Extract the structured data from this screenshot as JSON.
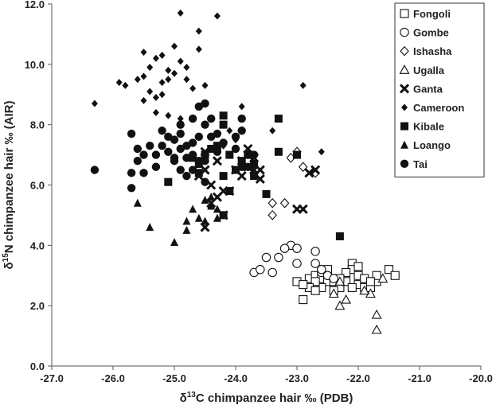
{
  "chart_data": {
    "type": "scatter",
    "xlabel_prefix": "δ",
    "xlabel_sup": "13",
    "xlabel_rest": "C chimpanzee hair ‰ (PDB)",
    "ylabel_prefix": "δ",
    "ylabel_sup": "15",
    "ylabel_rest": "N chimpanzee hair ‰ (AIR)",
    "xlim": [
      -27.0,
      -20.0
    ],
    "ylim": [
      0.0,
      12.0
    ],
    "x_ticks": [
      "-27.0",
      "-26.0",
      "-25.0",
      "-24.0",
      "-23.0",
      "-22.0",
      "-21.0",
      "-20.0"
    ],
    "y_ticks": [
      "0.0",
      "2.0",
      "4.0",
      "6.0",
      "8.0",
      "10.0",
      "12.0"
    ],
    "grid": false,
    "legend_position": "top-right",
    "series": [
      {
        "name": "Fongoli",
        "marker": "square-open",
        "points": [
          [
            -22.9,
            2.2
          ],
          [
            -23.0,
            2.8
          ],
          [
            -22.8,
            2.9
          ],
          [
            -22.7,
            3.0
          ],
          [
            -22.6,
            2.9
          ],
          [
            -22.5,
            3.2
          ],
          [
            -22.5,
            2.8
          ],
          [
            -22.4,
            2.8
          ],
          [
            -22.3,
            2.6
          ],
          [
            -22.2,
            2.8
          ],
          [
            -22.1,
            3.4
          ],
          [
            -22.1,
            3.2
          ],
          [
            -22.0,
            3.0
          ],
          [
            -22.0,
            2.7
          ],
          [
            -21.9,
            2.6
          ],
          [
            -21.8,
            2.6
          ],
          [
            -21.9,
            2.9
          ],
          [
            -21.7,
            2.8
          ],
          [
            -21.7,
            3.0
          ],
          [
            -21.5,
            3.2
          ],
          [
            -21.4,
            3.0
          ],
          [
            -22.2,
            3.1
          ],
          [
            -22.1,
            2.6
          ],
          [
            -22.3,
            2.9
          ],
          [
            -22.4,
            2.5
          ],
          [
            -22.6,
            2.6
          ],
          [
            -22.7,
            2.8
          ],
          [
            -22.8,
            2.6
          ],
          [
            -22.9,
            2.7
          ],
          [
            -22.7,
            2.5
          ],
          [
            -21.8,
            2.8
          ],
          [
            -22.0,
            3.3
          ]
        ]
      },
      {
        "name": "Gombe",
        "marker": "circle-open",
        "points": [
          [
            -23.7,
            3.1
          ],
          [
            -23.6,
            3.2
          ],
          [
            -23.4,
            3.1
          ],
          [
            -23.5,
            3.6
          ],
          [
            -23.3,
            3.6
          ],
          [
            -23.1,
            4.0
          ],
          [
            -23.0,
            3.9
          ],
          [
            -23.0,
            3.4
          ],
          [
            -22.7,
            3.8
          ],
          [
            -22.7,
            3.4
          ],
          [
            -22.6,
            3.1
          ],
          [
            -22.5,
            3.0
          ],
          [
            -22.4,
            2.9
          ],
          [
            -22.6,
            3.2
          ],
          [
            -23.2,
            3.9
          ]
        ]
      },
      {
        "name": "Ishasha",
        "marker": "diamond-open",
        "points": [
          [
            -23.0,
            7.1
          ],
          [
            -23.1,
            6.9
          ],
          [
            -22.9,
            6.6
          ],
          [
            -22.7,
            6.4
          ],
          [
            -23.4,
            5.4
          ],
          [
            -23.2,
            5.4
          ],
          [
            -23.4,
            5.0
          ]
        ]
      },
      {
        "name": "Ugalla",
        "marker": "triangle-open",
        "points": [
          [
            -22.3,
            2.8
          ],
          [
            -22.4,
            2.4
          ],
          [
            -22.2,
            2.2
          ],
          [
            -22.3,
            2.0
          ],
          [
            -21.7,
            1.7
          ],
          [
            -21.7,
            1.2
          ],
          [
            -21.8,
            2.4
          ],
          [
            -21.9,
            2.5
          ],
          [
            -21.6,
            2.9
          ]
        ]
      },
      {
        "name": "Ganta",
        "marker": "x-bold",
        "points": [
          [
            -24.5,
            7.1
          ],
          [
            -24.3,
            6.8
          ],
          [
            -24.5,
            6.5
          ],
          [
            -24.6,
            6.3
          ],
          [
            -24.4,
            6.0
          ],
          [
            -24.2,
            5.8
          ],
          [
            -24.3,
            5.6
          ],
          [
            -24.1,
            5.8
          ],
          [
            -24.5,
            4.6
          ],
          [
            -24.2,
            5.0
          ],
          [
            -24.0,
            6.5
          ],
          [
            -23.9,
            6.8
          ],
          [
            -23.8,
            6.6
          ],
          [
            -23.9,
            6.3
          ],
          [
            -23.7,
            6.9
          ],
          [
            -23.7,
            6.5
          ],
          [
            -23.8,
            7.0
          ],
          [
            -23.8,
            7.2
          ],
          [
            -23.6,
            6.5
          ],
          [
            -23.6,
            6.2
          ],
          [
            -23.0,
            5.2
          ],
          [
            -22.9,
            5.2
          ],
          [
            -22.8,
            6.4
          ],
          [
            -22.7,
            6.5
          ],
          [
            -24.4,
            5.4
          ]
        ]
      },
      {
        "name": "Cameroon",
        "marker": "diamond-filled",
        "points": [
          [
            -26.3,
            8.7
          ],
          [
            -25.9,
            9.4
          ],
          [
            -25.8,
            9.3
          ],
          [
            -25.5,
            10.4
          ],
          [
            -25.5,
            9.6
          ],
          [
            -25.4,
            9.1
          ],
          [
            -25.3,
            10.2
          ],
          [
            -25.2,
            10.3
          ],
          [
            -25.4,
            9.9
          ],
          [
            -25.3,
            8.9
          ],
          [
            -25.5,
            8.8
          ],
          [
            -25.2,
            9.0
          ],
          [
            -25.1,
            9.8
          ],
          [
            -25.2,
            9.4
          ],
          [
            -25.0,
            9.7
          ],
          [
            -24.9,
            11.7
          ],
          [
            -24.9,
            10.1
          ],
          [
            -24.8,
            9.9
          ],
          [
            -24.8,
            9.5
          ],
          [
            -25.0,
            10.6
          ],
          [
            -25.1,
            8.3
          ],
          [
            -25.3,
            8.4
          ],
          [
            -24.9,
            8.2
          ],
          [
            -24.6,
            11.1
          ],
          [
            -24.6,
            10.5
          ],
          [
            -24.7,
            9.2
          ],
          [
            -24.5,
            9.3
          ],
          [
            -24.3,
            11.6
          ],
          [
            -24.2,
            7.3
          ],
          [
            -24.0,
            7.5
          ],
          [
            -24.1,
            7.8
          ],
          [
            -23.9,
            8.6
          ],
          [
            -23.4,
            7.8
          ],
          [
            -22.9,
            9.3
          ],
          [
            -22.6,
            7.1
          ],
          [
            -25.6,
            9.5
          ],
          [
            -25.1,
            9.5
          ]
        ]
      },
      {
        "name": "Kibale",
        "marker": "square-filled",
        "points": [
          [
            -25.1,
            6.1
          ],
          [
            -24.7,
            6.9
          ],
          [
            -24.6,
            6.7
          ],
          [
            -24.5,
            7.0
          ],
          [
            -24.4,
            7.2
          ],
          [
            -24.3,
            7.3
          ],
          [
            -24.2,
            8.3
          ],
          [
            -24.2,
            8.0
          ],
          [
            -24.1,
            7.0
          ],
          [
            -24.0,
            6.5
          ],
          [
            -23.9,
            6.8
          ],
          [
            -23.7,
            6.7
          ],
          [
            -23.7,
            6.3
          ],
          [
            -23.5,
            5.7
          ],
          [
            -23.3,
            8.2
          ],
          [
            -23.3,
            7.1
          ],
          [
            -23.0,
            7.0
          ],
          [
            -22.3,
            4.3
          ],
          [
            -24.2,
            6.3
          ],
          [
            -24.1,
            5.8
          ],
          [
            -23.8,
            7.0
          ],
          [
            -24.6,
            6.4
          ],
          [
            -24.2,
            5.0
          ]
        ]
      },
      {
        "name": "Loango",
        "marker": "triangle-filled",
        "points": [
          [
            -25.6,
            5.4
          ],
          [
            -25.4,
            4.6
          ],
          [
            -25.0,
            4.1
          ],
          [
            -24.8,
            4.5
          ],
          [
            -24.8,
            4.8
          ],
          [
            -24.7,
            5.2
          ],
          [
            -24.6,
            4.9
          ],
          [
            -24.5,
            4.8
          ],
          [
            -24.4,
            5.3
          ],
          [
            -24.3,
            5.2
          ],
          [
            -24.4,
            5.6
          ],
          [
            -24.3,
            4.9
          ],
          [
            -24.5,
            5.5
          ],
          [
            -24.2,
            5.0
          ]
        ]
      },
      {
        "name": "Tai",
        "marker": "circle-filled",
        "points": [
          [
            -26.3,
            6.5
          ],
          [
            -25.7,
            7.7
          ],
          [
            -25.6,
            7.2
          ],
          [
            -25.6,
            6.8
          ],
          [
            -25.5,
            6.4
          ],
          [
            -25.7,
            6.4
          ],
          [
            -25.7,
            5.9
          ],
          [
            -25.4,
            7.3
          ],
          [
            -25.3,
            7.0
          ],
          [
            -25.2,
            7.8
          ],
          [
            -25.2,
            7.3
          ],
          [
            -25.1,
            7.6
          ],
          [
            -25.1,
            7.1
          ],
          [
            -25.0,
            6.8
          ],
          [
            -25.0,
            7.5
          ],
          [
            -24.9,
            7.7
          ],
          [
            -24.9,
            7.2
          ],
          [
            -24.8,
            7.3
          ],
          [
            -24.8,
            6.9
          ],
          [
            -24.7,
            7.0
          ],
          [
            -24.7,
            7.4
          ],
          [
            -24.6,
            7.6
          ],
          [
            -24.6,
            8.6
          ],
          [
            -24.5,
            8.7
          ],
          [
            -24.5,
            8.0
          ],
          [
            -24.4,
            8.2
          ],
          [
            -24.4,
            7.6
          ],
          [
            -24.3,
            7.7
          ],
          [
            -24.3,
            7.1
          ],
          [
            -24.2,
            7.4
          ],
          [
            -24.0,
            7.6
          ],
          [
            -24.0,
            7.2
          ],
          [
            -23.9,
            8.2
          ],
          [
            -23.9,
            7.8
          ],
          [
            -23.8,
            7.0
          ],
          [
            -23.7,
            7.0
          ],
          [
            -23.8,
            6.6
          ],
          [
            -23.9,
            6.6
          ],
          [
            -25.0,
            6.9
          ],
          [
            -24.9,
            6.5
          ],
          [
            -24.7,
            6.5
          ],
          [
            -24.6,
            6.8
          ],
          [
            -24.8,
            6.3
          ],
          [
            -24.5,
            6.1
          ],
          [
            -24.7,
            8.2
          ],
          [
            -24.9,
            8.0
          ],
          [
            -25.3,
            6.6
          ],
          [
            -25.5,
            7.0
          ],
          [
            -24.5,
            6.8
          ]
        ]
      }
    ]
  }
}
